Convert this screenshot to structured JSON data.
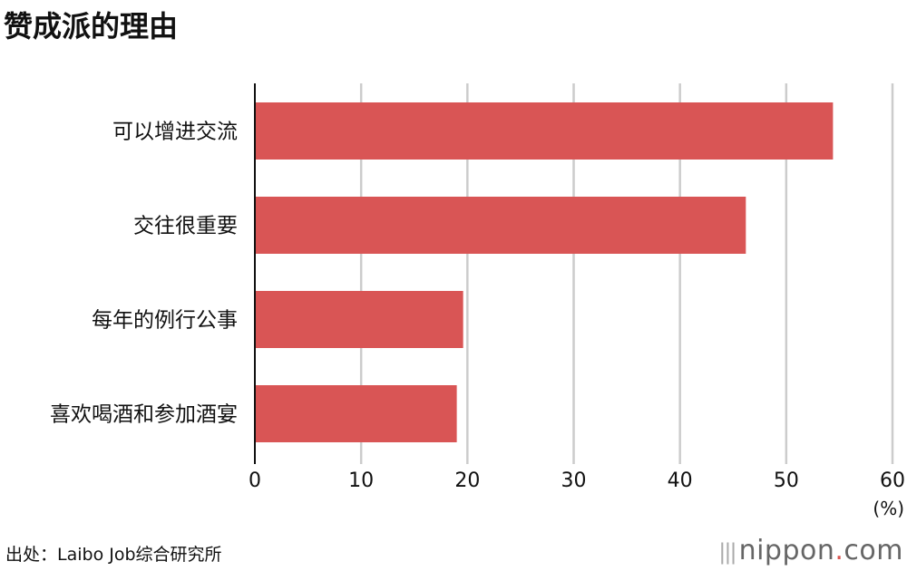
{
  "title": "赞成派的理由",
  "source": "出处：Laibo Job综合研究所",
  "logo": {
    "main": "nippon",
    "dot": ".",
    "suffix": "com"
  },
  "chart_data": {
    "type": "bar",
    "orientation": "horizontal",
    "title": "赞成派的理由",
    "categories": [
      "可以增进交流",
      "交往很重要",
      "每年的例行公事",
      "喜欢喝酒和参加酒宴"
    ],
    "values": [
      54.4,
      46.2,
      19.6,
      19.0
    ],
    "xlim": [
      0,
      60
    ],
    "xticks": [
      0,
      10,
      20,
      30,
      40,
      50,
      60
    ],
    "unit_label": "(%)",
    "grid": true,
    "bar_color": "#d95555",
    "grid_color": "#cccccc"
  }
}
